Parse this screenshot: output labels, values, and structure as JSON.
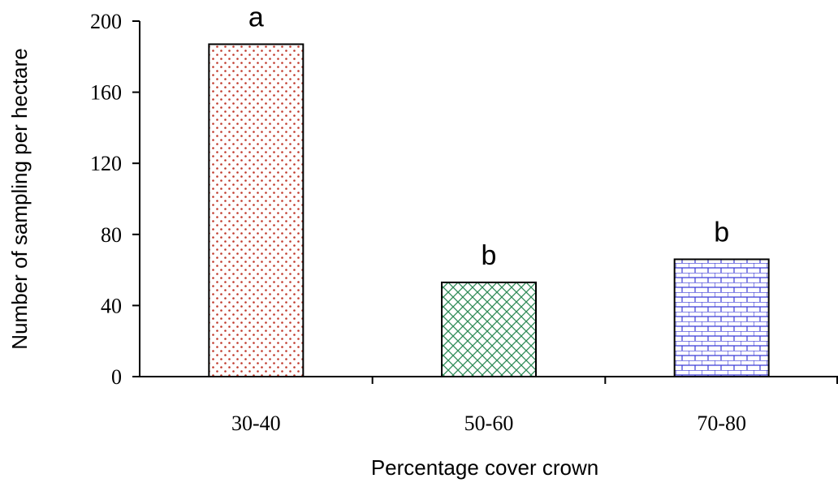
{
  "chart_data": {
    "type": "bar",
    "title": "",
    "xlabel": "Percentage cover crown",
    "ylabel": "Number of sampling per hectare",
    "categories": [
      "30-40",
      "50-60",
      "70-80"
    ],
    "values": [
      187,
      53,
      66
    ],
    "bar_labels": [
      "a",
      "b",
      "b"
    ],
    "ylim": [
      0,
      200
    ],
    "yticks": [
      0,
      40,
      80,
      120,
      160,
      200
    ],
    "ytick_labels": [
      "0",
      "40",
      "80",
      "120",
      "160",
      "200"
    ],
    "grid": false,
    "legend": "none",
    "bar_patterns": [
      "dots",
      "diagonal-crosshatch",
      "brick"
    ],
    "colors": [
      "#c0392b",
      "#2e8b57",
      "#3b3bd6"
    ]
  }
}
